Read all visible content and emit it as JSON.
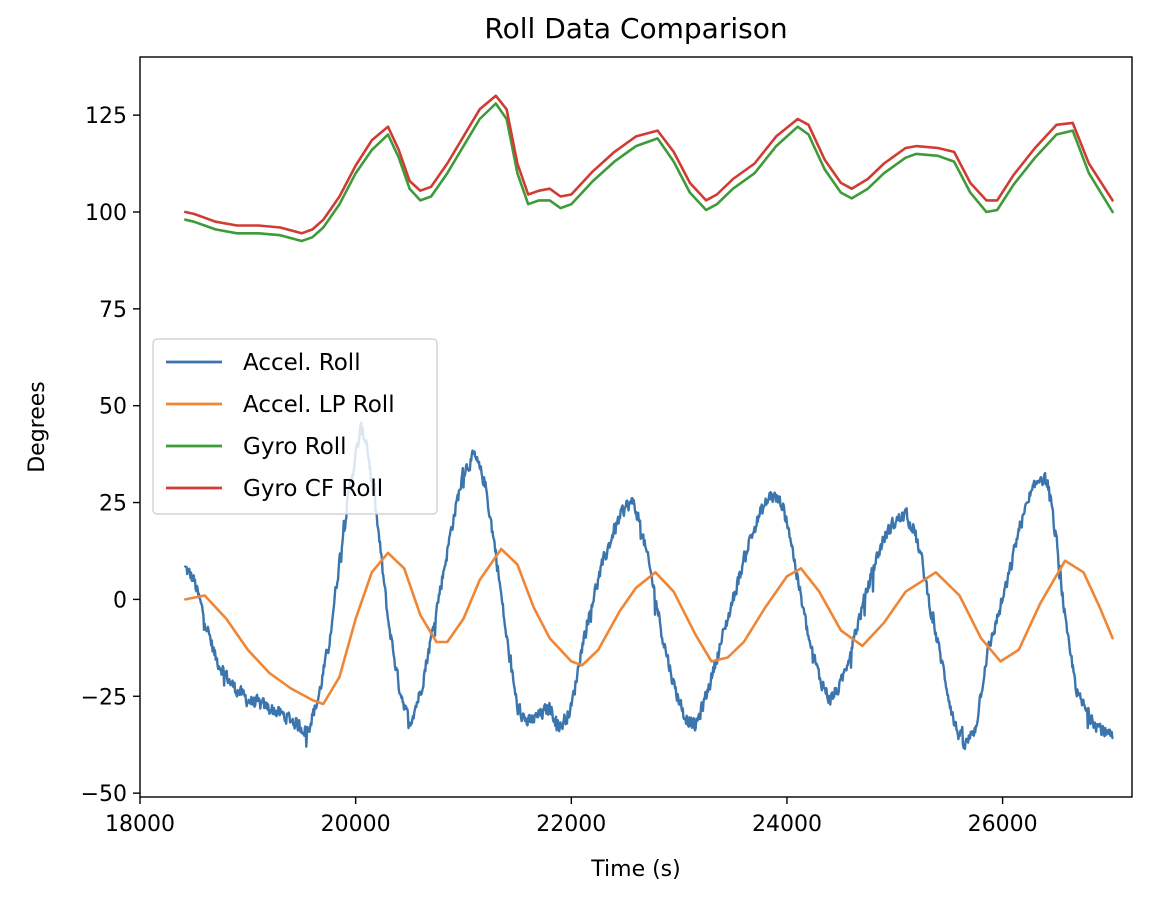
{
  "chart_data": {
    "type": "line",
    "title": "Roll Data Comparison",
    "xlabel": "Time (s)",
    "ylabel": "Degrees",
    "xlim": [
      18000,
      27200
    ],
    "ylim": [
      -51,
      140
    ],
    "xticks": [
      18000,
      20000,
      22000,
      24000,
      26000
    ],
    "xtick_labels": [
      "18000",
      "20000",
      "22000",
      "24000",
      "26000"
    ],
    "yticks": [
      -50,
      -25,
      0,
      25,
      50,
      75,
      100,
      125
    ],
    "ytick_labels": [
      "−50",
      "−25",
      "0",
      "25",
      "50",
      "75",
      "100",
      "125"
    ],
    "grid": false,
    "legend_placement": "center-left",
    "series": [
      {
        "name": "Accel. Roll",
        "color": "#3a75ae",
        "noise": true,
        "x": [
          18420,
          18500,
          18600,
          18700,
          18850,
          19000,
          19200,
          19400,
          19550,
          19650,
          19750,
          19850,
          19950,
          20050,
          20100,
          20200,
          20300,
          20400,
          20500,
          20600,
          20700,
          20800,
          20900,
          21000,
          21100,
          21200,
          21300,
          21400,
          21500,
          21600,
          21700,
          21800,
          21900,
          22000,
          22100,
          22200,
          22300,
          22400,
          22500,
          22580,
          22650,
          22750,
          22850,
          22950,
          23050,
          23150,
          23250,
          23350,
          23450,
          23550,
          23650,
          23750,
          23850,
          23950,
          24020,
          24100,
          24200,
          24300,
          24400,
          24500,
          24600,
          24700,
          24800,
          24900,
          25000,
          25100,
          25180,
          25250,
          25350,
          25450,
          25550,
          25650,
          25750,
          25850,
          25950,
          26050,
          26150,
          26250,
          26350,
          26420,
          26500,
          26600,
          26700,
          26800,
          26900,
          27020
        ],
        "values": [
          8,
          5,
          -5,
          -15,
          -22,
          -26,
          -28,
          -31,
          -34,
          -26,
          -12,
          10,
          30,
          44,
          41,
          20,
          -5,
          -22,
          -32,
          -24,
          -10,
          5,
          20,
          33,
          37,
          30,
          12,
          -10,
          -28,
          -32,
          -30,
          -28,
          -33,
          -28,
          -12,
          0,
          10,
          18,
          24,
          25,
          18,
          5,
          -10,
          -22,
          -30,
          -33,
          -25,
          -15,
          -5,
          5,
          15,
          22,
          27,
          25,
          18,
          5,
          -10,
          -20,
          -26,
          -22,
          -12,
          -2,
          8,
          16,
          20,
          22,
          18,
          10,
          -5,
          -18,
          -32,
          -38,
          -33,
          -15,
          -5,
          5,
          18,
          26,
          32,
          30,
          15,
          -10,
          -25,
          -30,
          -33,
          -36
        ]
      },
      {
        "name": "Accel. LP Roll",
        "color": "#ef8636",
        "noise": false,
        "x": [
          18420,
          18600,
          18800,
          19000,
          19200,
          19400,
          19600,
          19700,
          19850,
          20000,
          20150,
          20300,
          20450,
          20600,
          20750,
          20850,
          21000,
          21150,
          21350,
          21500,
          21650,
          21800,
          22000,
          22100,
          22250,
          22450,
          22600,
          22780,
          22950,
          23150,
          23300,
          23450,
          23600,
          23800,
          24000,
          24130,
          24300,
          24500,
          24700,
          24900,
          25100,
          25380,
          25600,
          25800,
          25980,
          26150,
          26350,
          26580,
          26750,
          26900,
          27020
        ],
        "values": [
          0,
          1,
          -5,
          -13,
          -19,
          -23,
          -26,
          -27,
          -20,
          -5,
          7,
          12,
          8,
          -4,
          -11,
          -11,
          -5,
          5,
          13,
          9,
          -2,
          -10,
          -16,
          -17,
          -13,
          -3,
          3,
          7,
          2,
          -9,
          -16,
          -15,
          -11,
          -2,
          6,
          8,
          2,
          -8,
          -12,
          -6,
          2,
          7,
          1,
          -10,
          -16,
          -13,
          -1,
          10,
          7,
          -2,
          -10
        ]
      },
      {
        "name": "Gyro Roll",
        "color": "#3e9b3a",
        "noise": false,
        "x": [
          18420,
          18500,
          18700,
          18900,
          19100,
          19300,
          19500,
          19600,
          19700,
          19850,
          20000,
          20150,
          20300,
          20400,
          20500,
          20600,
          20700,
          20850,
          21000,
          21150,
          21300,
          21400,
          21500,
          21600,
          21700,
          21800,
          21900,
          22000,
          22100,
          22200,
          22400,
          22600,
          22800,
          22950,
          23100,
          23250,
          23350,
          23500,
          23700,
          23900,
          24100,
          24200,
          24350,
          24500,
          24600,
          24750,
          24900,
          25100,
          25200,
          25400,
          25550,
          25700,
          25850,
          25950,
          26100,
          26300,
          26500,
          26650,
          26800,
          27020
        ],
        "values": [
          98,
          97.5,
          95.5,
          94.5,
          94.5,
          94,
          92.5,
          93.5,
          96,
          102,
          110,
          116,
          120,
          114,
          106,
          103,
          104,
          110,
          117,
          124,
          128,
          124,
          110,
          102,
          103,
          103,
          101,
          102,
          105,
          108,
          113,
          117,
          119,
          113,
          105,
          100.5,
          102,
          106,
          110,
          117,
          122,
          120,
          111,
          105,
          103.5,
          106,
          110,
          114,
          115,
          114.5,
          113,
          105,
          100,
          100.5,
          107,
          114,
          120,
          121,
          110,
          100
        ]
      },
      {
        "name": "Gyro CF Roll",
        "color": "#d03c33",
        "noise": false,
        "x": [
          18420,
          18500,
          18700,
          18900,
          19100,
          19300,
          19500,
          19600,
          19700,
          19850,
          20000,
          20150,
          20300,
          20400,
          20500,
          20600,
          20700,
          20850,
          21000,
          21150,
          21300,
          21400,
          21500,
          21600,
          21700,
          21800,
          21900,
          22000,
          22100,
          22200,
          22400,
          22600,
          22800,
          22950,
          23100,
          23250,
          23350,
          23500,
          23700,
          23900,
          24100,
          24200,
          24350,
          24500,
          24600,
          24750,
          24900,
          25100,
          25200,
          25400,
          25550,
          25700,
          25850,
          25950,
          26100,
          26300,
          26500,
          26650,
          26800,
          27020
        ],
        "values": [
          100,
          99.5,
          97.5,
          96.5,
          96.5,
          96,
          94.5,
          95.5,
          98,
          104,
          112,
          118.5,
          122,
          116,
          108,
          105.5,
          106.5,
          112.5,
          119.5,
          126.5,
          130,
          126.5,
          112.5,
          104.5,
          105.5,
          106,
          104,
          104.5,
          107.5,
          110.5,
          115.5,
          119.5,
          121,
          115.5,
          107.5,
          103,
          104.5,
          108.5,
          112.5,
          119.5,
          124,
          122.5,
          113.5,
          107.5,
          106,
          108.5,
          112.5,
          116.5,
          117,
          116.5,
          115.5,
          107.5,
          103,
          103,
          109.5,
          116.5,
          122.5,
          123,
          112.5,
          103
        ]
      }
    ]
  }
}
